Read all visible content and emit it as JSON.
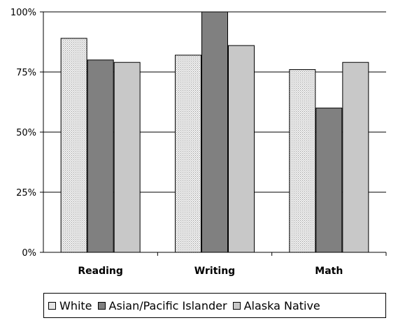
{
  "chart_data": {
    "type": "bar",
    "categories": [
      "Reading",
      "Writing",
      "Math"
    ],
    "series": [
      {
        "name": "White",
        "values": [
          89,
          82,
          76
        ],
        "color": "#e8e8e8"
      },
      {
        "name": "Asian/Pacific Islander",
        "values": [
          80,
          100,
          60
        ],
        "color": "#808080"
      },
      {
        "name": "Alaska Native",
        "values": [
          79,
          86,
          79
        ],
        "color": "#c8c8c8"
      }
    ],
    "yticks": [
      "0%",
      "25%",
      "50%",
      "75%",
      "100%"
    ],
    "ylim": [
      0,
      100
    ],
    "grid": true,
    "legend_position": "bottom"
  }
}
